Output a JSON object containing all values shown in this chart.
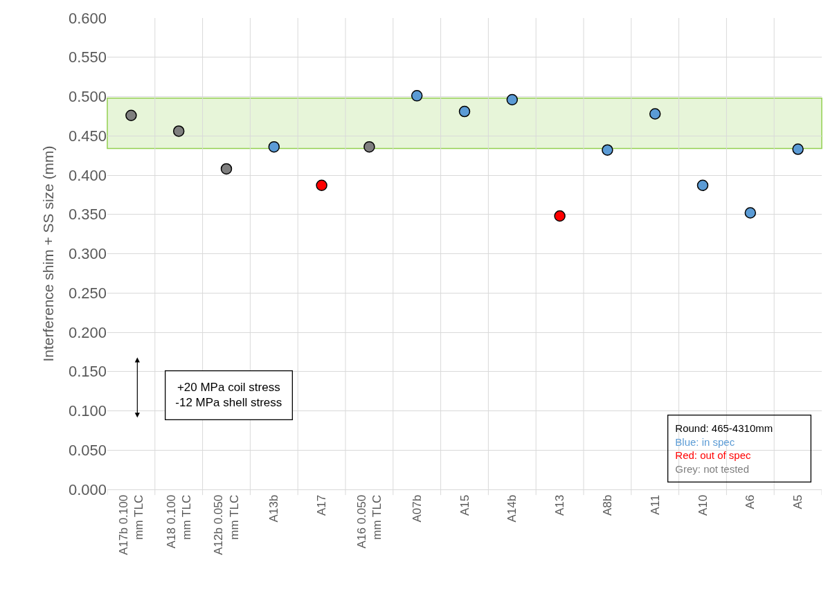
{
  "chart_data": {
    "type": "scatter",
    "ylabel": "Interference shim + SS size (mm)",
    "categories": [
      "A17b 0.100 mm TLC",
      "A18 0.100 mm TLC",
      "A12b 0.050 mm TLC",
      "A13b",
      "A17",
      "A16 0.050 mm TLC",
      "A07b",
      "A15",
      "A14b",
      "A13",
      "A8b",
      "A11",
      "A10",
      "A6",
      "A5"
    ],
    "series": [
      {
        "name": "Blue: in spec",
        "color": "#5b9bd5",
        "values": [
          null,
          null,
          null,
          0.436,
          null,
          null,
          0.501,
          0.481,
          0.496,
          null,
          0.432,
          0.478,
          0.387,
          0.352,
          0.433
        ]
      },
      {
        "name": "Red: out of spec",
        "color": "#ff0000",
        "values": [
          null,
          null,
          null,
          null,
          0.387,
          null,
          null,
          null,
          null,
          0.348,
          null,
          null,
          null,
          null,
          null
        ]
      },
      {
        "name": "Grey: not tested",
        "color": "#7f7f7f",
        "values": [
          0.476,
          0.456,
          0.408,
          null,
          null,
          0.436,
          null,
          null,
          null,
          null,
          null,
          null,
          null,
          null,
          null
        ]
      }
    ],
    "ylim": [
      0,
      0.6
    ],
    "yticks": [
      {
        "value": 0,
        "label": "0.000"
      },
      {
        "value": 0.05,
        "label": "0.050"
      },
      {
        "value": 0.1,
        "label": "0.100"
      },
      {
        "value": 0.15,
        "label": "0.150"
      },
      {
        "value": 0.2,
        "label": "0.200"
      },
      {
        "value": 0.25,
        "label": "0.250"
      },
      {
        "value": 0.3,
        "label": "0.300"
      },
      {
        "value": 0.35,
        "label": "0.350"
      },
      {
        "value": 0.4,
        "label": "0.400"
      },
      {
        "value": 0.45,
        "label": "0.450"
      },
      {
        "value": 0.5,
        "label": "0.500"
      },
      {
        "value": 0.55,
        "label": "0.550"
      },
      {
        "value": 0.6,
        "label": "0.600"
      }
    ],
    "bands": [
      {
        "axis": "y",
        "from": 0.434,
        "to": 0.498,
        "color": "#92d050"
      }
    ],
    "annotations": [
      "+20 MPa coil stress\n-12 MPa shell stress",
      "Round: 465-4310mm"
    ],
    "grid": true,
    "legend": "bottom right",
    "marker": "circle"
  }
}
